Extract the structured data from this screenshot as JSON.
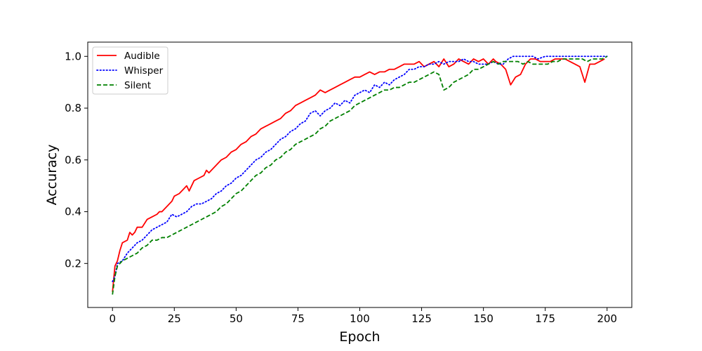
{
  "chart_data": {
    "type": "line",
    "title": "",
    "xlabel": "Epoch",
    "ylabel": "Accuracy",
    "xlim": [
      -10,
      210
    ],
    "ylim": [
      0.03,
      1.055
    ],
    "x_ticks": [
      0,
      25,
      50,
      75,
      100,
      125,
      150,
      175,
      200
    ],
    "y_ticks": [
      0.2,
      0.4,
      0.6,
      0.8,
      1.0
    ],
    "x_tick_labels": [
      "0",
      "25",
      "50",
      "75",
      "100",
      "125",
      "150",
      "175",
      "200"
    ],
    "y_tick_labels": [
      "0.2",
      "0.4",
      "0.6",
      "0.8",
      "1.0"
    ],
    "grid": false,
    "legend_position": "upper-left",
    "series": [
      {
        "name": "Audible",
        "color": "#ff0000",
        "style": "solid",
        "points": [
          [
            0,
            0.09
          ],
          [
            1,
            0.19
          ],
          [
            2,
            0.21
          ],
          [
            3,
            0.25
          ],
          [
            4,
            0.28
          ],
          [
            6,
            0.29
          ],
          [
            7,
            0.32
          ],
          [
            8,
            0.31
          ],
          [
            9,
            0.32
          ],
          [
            10,
            0.34
          ],
          [
            12,
            0.34
          ],
          [
            14,
            0.37
          ],
          [
            16,
            0.38
          ],
          [
            18,
            0.39
          ],
          [
            19,
            0.4
          ],
          [
            20,
            0.4
          ],
          [
            22,
            0.42
          ],
          [
            24,
            0.44
          ],
          [
            25,
            0.46
          ],
          [
            27,
            0.47
          ],
          [
            29,
            0.49
          ],
          [
            30,
            0.5
          ],
          [
            31,
            0.48
          ],
          [
            33,
            0.52
          ],
          [
            35,
            0.53
          ],
          [
            37,
            0.54
          ],
          [
            38,
            0.56
          ],
          [
            39,
            0.55
          ],
          [
            40,
            0.56
          ],
          [
            42,
            0.58
          ],
          [
            44,
            0.6
          ],
          [
            46,
            0.61
          ],
          [
            48,
            0.63
          ],
          [
            50,
            0.64
          ],
          [
            52,
            0.66
          ],
          [
            54,
            0.67
          ],
          [
            56,
            0.69
          ],
          [
            58,
            0.7
          ],
          [
            60,
            0.72
          ],
          [
            62,
            0.73
          ],
          [
            64,
            0.74
          ],
          [
            66,
            0.75
          ],
          [
            68,
            0.76
          ],
          [
            70,
            0.78
          ],
          [
            72,
            0.79
          ],
          [
            74,
            0.81
          ],
          [
            76,
            0.82
          ],
          [
            78,
            0.83
          ],
          [
            80,
            0.84
          ],
          [
            82,
            0.85
          ],
          [
            84,
            0.87
          ],
          [
            86,
            0.86
          ],
          [
            88,
            0.87
          ],
          [
            90,
            0.88
          ],
          [
            92,
            0.89
          ],
          [
            94,
            0.9
          ],
          [
            96,
            0.91
          ],
          [
            98,
            0.92
          ],
          [
            100,
            0.92
          ],
          [
            102,
            0.93
          ],
          [
            104,
            0.94
          ],
          [
            106,
            0.93
          ],
          [
            108,
            0.94
          ],
          [
            110,
            0.94
          ],
          [
            112,
            0.95
          ],
          [
            114,
            0.95
          ],
          [
            116,
            0.96
          ],
          [
            118,
            0.97
          ],
          [
            120,
            0.97
          ],
          [
            122,
            0.97
          ],
          [
            124,
            0.98
          ],
          [
            126,
            0.96
          ],
          [
            128,
            0.97
          ],
          [
            130,
            0.98
          ],
          [
            132,
            0.96
          ],
          [
            134,
            0.99
          ],
          [
            136,
            0.96
          ],
          [
            138,
            0.97
          ],
          [
            140,
            0.99
          ],
          [
            142,
            0.98
          ],
          [
            144,
            0.97
          ],
          [
            146,
            0.99
          ],
          [
            148,
            0.98
          ],
          [
            150,
            0.99
          ],
          [
            152,
            0.97
          ],
          [
            154,
            0.99
          ],
          [
            155,
            0.98
          ],
          [
            157,
            0.97
          ],
          [
            159,
            0.95
          ],
          [
            161,
            0.89
          ],
          [
            163,
            0.92
          ],
          [
            165,
            0.93
          ],
          [
            167,
            0.97
          ],
          [
            169,
            0.99
          ],
          [
            171,
            0.99
          ],
          [
            173,
            0.98
          ],
          [
            175,
            0.98
          ],
          [
            177,
            0.98
          ],
          [
            179,
            0.99
          ],
          [
            181,
            0.99
          ],
          [
            183,
            0.99
          ],
          [
            185,
            0.98
          ],
          [
            187,
            0.97
          ],
          [
            189,
            0.96
          ],
          [
            191,
            0.9
          ],
          [
            193,
            0.97
          ],
          [
            195,
            0.97
          ],
          [
            197,
            0.98
          ],
          [
            199,
            0.99
          ]
        ]
      },
      {
        "name": "Whisper",
        "color": "#0000ff",
        "style": "dotted",
        "points": [
          [
            0,
            0.13
          ],
          [
            1,
            0.15
          ],
          [
            2,
            0.2
          ],
          [
            4,
            0.21
          ],
          [
            6,
            0.24
          ],
          [
            8,
            0.26
          ],
          [
            10,
            0.28
          ],
          [
            12,
            0.29
          ],
          [
            14,
            0.31
          ],
          [
            16,
            0.33
          ],
          [
            18,
            0.34
          ],
          [
            20,
            0.35
          ],
          [
            22,
            0.36
          ],
          [
            24,
            0.39
          ],
          [
            26,
            0.38
          ],
          [
            28,
            0.39
          ],
          [
            30,
            0.4
          ],
          [
            32,
            0.42
          ],
          [
            34,
            0.43
          ],
          [
            36,
            0.43
          ],
          [
            38,
            0.44
          ],
          [
            40,
            0.45
          ],
          [
            42,
            0.47
          ],
          [
            44,
            0.48
          ],
          [
            46,
            0.5
          ],
          [
            48,
            0.51
          ],
          [
            50,
            0.53
          ],
          [
            52,
            0.54
          ],
          [
            54,
            0.56
          ],
          [
            56,
            0.58
          ],
          [
            58,
            0.6
          ],
          [
            60,
            0.61
          ],
          [
            62,
            0.63
          ],
          [
            64,
            0.64
          ],
          [
            66,
            0.66
          ],
          [
            68,
            0.68
          ],
          [
            70,
            0.69
          ],
          [
            72,
            0.71
          ],
          [
            74,
            0.72
          ],
          [
            76,
            0.74
          ],
          [
            78,
            0.75
          ],
          [
            80,
            0.78
          ],
          [
            82,
            0.79
          ],
          [
            84,
            0.77
          ],
          [
            86,
            0.79
          ],
          [
            88,
            0.8
          ],
          [
            90,
            0.82
          ],
          [
            92,
            0.81
          ],
          [
            94,
            0.83
          ],
          [
            96,
            0.82
          ],
          [
            98,
            0.85
          ],
          [
            100,
            0.86
          ],
          [
            102,
            0.87
          ],
          [
            104,
            0.86
          ],
          [
            106,
            0.89
          ],
          [
            108,
            0.88
          ],
          [
            110,
            0.9
          ],
          [
            112,
            0.89
          ],
          [
            114,
            0.91
          ],
          [
            116,
            0.92
          ],
          [
            118,
            0.93
          ],
          [
            120,
            0.95
          ],
          [
            122,
            0.95
          ],
          [
            124,
            0.96
          ],
          [
            126,
            0.96
          ],
          [
            128,
            0.97
          ],
          [
            130,
            0.97
          ],
          [
            132,
            0.98
          ],
          [
            134,
            0.97
          ],
          [
            136,
            0.98
          ],
          [
            138,
            0.98
          ],
          [
            140,
            0.98
          ],
          [
            142,
            0.99
          ],
          [
            144,
            0.98
          ],
          [
            146,
            0.98
          ],
          [
            148,
            0.97
          ],
          [
            150,
            0.97
          ],
          [
            152,
            0.97
          ],
          [
            154,
            0.98
          ],
          [
            156,
            0.97
          ],
          [
            158,
            0.97
          ],
          [
            160,
            0.99
          ],
          [
            162,
            1.0
          ],
          [
            165,
            1.0
          ],
          [
            168,
            1.0
          ],
          [
            170,
            1.0
          ],
          [
            172,
            0.99
          ],
          [
            175,
            1.0
          ],
          [
            180,
            1.0
          ],
          [
            185,
            1.0
          ],
          [
            190,
            1.0
          ],
          [
            195,
            1.0
          ],
          [
            200,
            1.0
          ]
        ]
      },
      {
        "name": "Silent",
        "color": "#008000",
        "style": "dashed",
        "points": [
          [
            0,
            0.08
          ],
          [
            1,
            0.15
          ],
          [
            2,
            0.19
          ],
          [
            4,
            0.21
          ],
          [
            6,
            0.22
          ],
          [
            8,
            0.23
          ],
          [
            10,
            0.24
          ],
          [
            12,
            0.26
          ],
          [
            14,
            0.27
          ],
          [
            16,
            0.29
          ],
          [
            18,
            0.29
          ],
          [
            20,
            0.3
          ],
          [
            22,
            0.3
          ],
          [
            24,
            0.31
          ],
          [
            26,
            0.32
          ],
          [
            28,
            0.33
          ],
          [
            30,
            0.34
          ],
          [
            32,
            0.35
          ],
          [
            34,
            0.36
          ],
          [
            36,
            0.37
          ],
          [
            38,
            0.38
          ],
          [
            40,
            0.39
          ],
          [
            42,
            0.4
          ],
          [
            44,
            0.42
          ],
          [
            46,
            0.43
          ],
          [
            48,
            0.45
          ],
          [
            50,
            0.47
          ],
          [
            52,
            0.48
          ],
          [
            54,
            0.5
          ],
          [
            56,
            0.52
          ],
          [
            58,
            0.54
          ],
          [
            60,
            0.55
          ],
          [
            62,
            0.57
          ],
          [
            64,
            0.58
          ],
          [
            66,
            0.6
          ],
          [
            68,
            0.61
          ],
          [
            70,
            0.63
          ],
          [
            72,
            0.64
          ],
          [
            74,
            0.66
          ],
          [
            76,
            0.67
          ],
          [
            78,
            0.68
          ],
          [
            80,
            0.69
          ],
          [
            82,
            0.7
          ],
          [
            84,
            0.72
          ],
          [
            86,
            0.73
          ],
          [
            88,
            0.75
          ],
          [
            90,
            0.76
          ],
          [
            92,
            0.77
          ],
          [
            94,
            0.78
          ],
          [
            96,
            0.79
          ],
          [
            98,
            0.81
          ],
          [
            100,
            0.82
          ],
          [
            102,
            0.83
          ],
          [
            104,
            0.84
          ],
          [
            106,
            0.85
          ],
          [
            108,
            0.86
          ],
          [
            110,
            0.87
          ],
          [
            112,
            0.87
          ],
          [
            114,
            0.88
          ],
          [
            116,
            0.88
          ],
          [
            118,
            0.89
          ],
          [
            120,
            0.9
          ],
          [
            122,
            0.9
          ],
          [
            124,
            0.91
          ],
          [
            126,
            0.92
          ],
          [
            128,
            0.93
          ],
          [
            130,
            0.94
          ],
          [
            132,
            0.93
          ],
          [
            134,
            0.87
          ],
          [
            136,
            0.88
          ],
          [
            138,
            0.9
          ],
          [
            140,
            0.91
          ],
          [
            142,
            0.92
          ],
          [
            144,
            0.93
          ],
          [
            146,
            0.95
          ],
          [
            148,
            0.95
          ],
          [
            150,
            0.96
          ],
          [
            152,
            0.97
          ],
          [
            154,
            0.98
          ],
          [
            156,
            0.97
          ],
          [
            158,
            0.98
          ],
          [
            160,
            0.98
          ],
          [
            162,
            0.98
          ],
          [
            164,
            0.98
          ],
          [
            166,
            0.97
          ],
          [
            168,
            0.98
          ],
          [
            170,
            0.97
          ],
          [
            172,
            0.97
          ],
          [
            174,
            0.97
          ],
          [
            176,
            0.97
          ],
          [
            178,
            0.98
          ],
          [
            180,
            0.98
          ],
          [
            182,
            0.99
          ],
          [
            184,
            0.99
          ],
          [
            186,
            0.99
          ],
          [
            188,
            0.99
          ],
          [
            190,
            0.99
          ],
          [
            192,
            0.98
          ],
          [
            194,
            0.99
          ],
          [
            196,
            0.99
          ],
          [
            198,
            0.99
          ],
          [
            200,
            1.0
          ]
        ]
      }
    ]
  }
}
